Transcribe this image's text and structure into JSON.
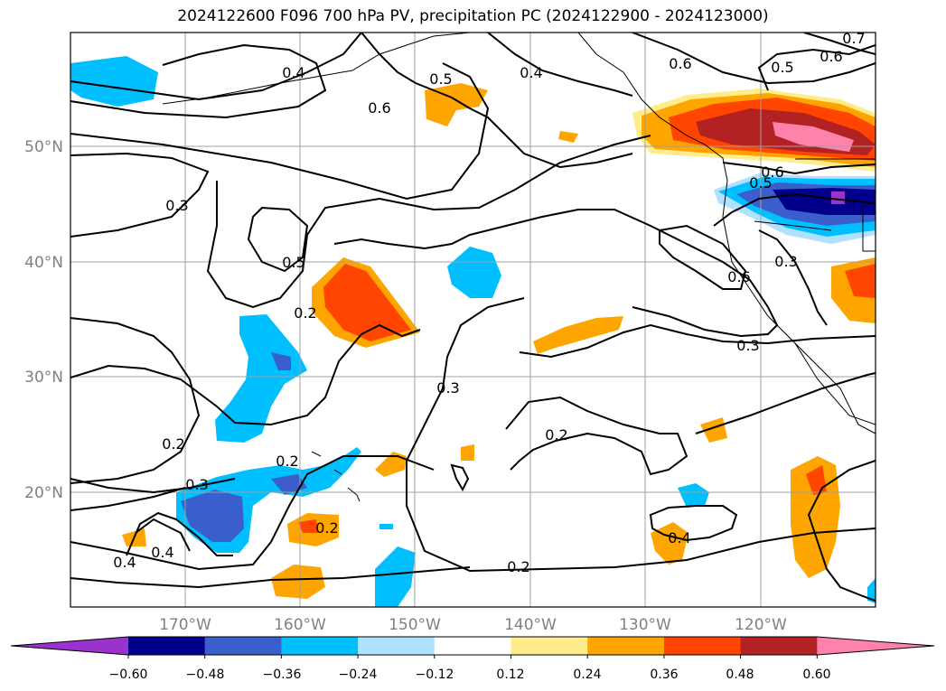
{
  "title": "2024122600 F096 700 hPa PV, precipitation PC (2024122900 - 2024123000)",
  "lat_labels": [
    "50°N",
    "40°N",
    "30°N",
    "20°N"
  ],
  "lon_labels": [
    "170°W",
    "160°W",
    "150°W",
    "140°W",
    "130°W",
    "120°W"
  ],
  "contour_labels": [
    "0.4",
    "0.5",
    "0.6",
    "0.6",
    "0.5",
    "0.6",
    "0.7",
    "0.3",
    "0.5",
    "0.4",
    "0.6",
    "0.3",
    "0.6",
    "0.5",
    "0.3",
    "0.3",
    "0.2",
    "0.2",
    "0.3",
    "0.2",
    "0.2",
    "0.4",
    "0.4",
    "0.4",
    "0.2",
    "0.2"
  ],
  "colorbar": {
    "ticks": [
      "−0.60",
      "−0.48",
      "−0.36",
      "−0.24",
      "−0.12",
      "0.12",
      "0.24",
      "0.36",
      "0.48",
      "0.60"
    ],
    "colors": [
      "#9a32cd",
      "#00008b",
      "#3a5fcd",
      "#00bfff",
      "#b0e2ff",
      "#ffffff",
      "#ffec8b",
      "#ffa500",
      "#ff4500",
      "#b22222",
      "#ff82ab"
    ]
  },
  "map": {
    "land_color": "none",
    "grid_color": "#a0a0a0"
  }
}
